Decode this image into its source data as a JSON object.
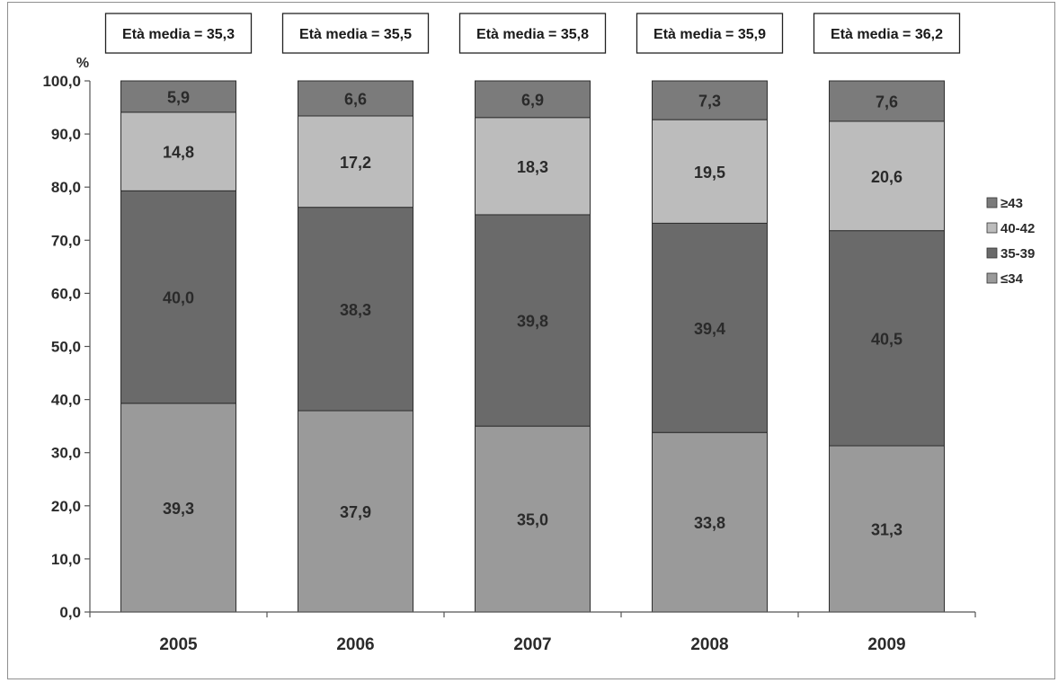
{
  "chart_data": {
    "type": "bar",
    "stacked": true,
    "y_unit": "%",
    "categories": [
      "2005",
      "2006",
      "2007",
      "2008",
      "2009"
    ],
    "series": [
      {
        "name": "≤34",
        "values": [
          39.3,
          37.9,
          35.0,
          33.8,
          31.3
        ],
        "labels": [
          "39,3",
          "37,9",
          "35,0",
          "33,8",
          "31,3"
        ],
        "color": "#9a9a9a"
      },
      {
        "name": "35-39",
        "values": [
          40.0,
          38.3,
          39.8,
          39.4,
          40.5
        ],
        "labels": [
          "40,0",
          "38,3",
          "39,8",
          "39,4",
          "40,5"
        ],
        "color": "#6a6a6a"
      },
      {
        "name": "40-42",
        "values": [
          14.8,
          17.2,
          18.3,
          19.5,
          20.6
        ],
        "labels": [
          "14,8",
          "17,2",
          "18,3",
          "19,5",
          "20,6"
        ],
        "color": "#bcbcbc"
      },
      {
        "name": "≥43",
        "values": [
          5.9,
          6.6,
          6.9,
          7.3,
          7.6
        ],
        "labels": [
          "5,9",
          "6,6",
          "6,9",
          "7,3",
          "7,6"
        ],
        "color": "#7b7b7b"
      }
    ],
    "annotations": [
      "Età media = 35,3",
      "Età media = 35,5",
      "Età media = 35,8",
      "Età media = 35,9",
      "Età media = 36,2"
    ],
    "ylim": [
      0,
      100
    ],
    "y_ticks": [
      0,
      10,
      20,
      30,
      40,
      50,
      60,
      70,
      80,
      90,
      100
    ],
    "y_tick_labels": [
      "0,0",
      "10,0",
      "20,0",
      "30,0",
      "40,0",
      "50,0",
      "60,0",
      "70,0",
      "80,0",
      "90,0",
      "100,0"
    ],
    "grid": false,
    "legend": {
      "position": "right",
      "order": [
        "≥43",
        "40-42",
        "35-39",
        "≤34"
      ]
    }
  }
}
